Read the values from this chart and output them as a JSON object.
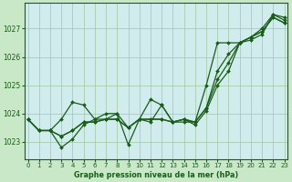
{
  "title": "Graphe pression niveau de la mer (hPa)",
  "bg_color": "#c8e8c8",
  "plot_bg_color": "#d0ecec",
  "grid_color": "#a0c8a0",
  "line_color": "#1a5c1a",
  "marker_color": "#1a5c1a",
  "xlim": [
    -0.3,
    23.3
  ],
  "ylim": [
    1022.4,
    1027.9
  ],
  "yticks": [
    1023,
    1024,
    1025,
    1026,
    1027
  ],
  "xticks": [
    0,
    1,
    2,
    3,
    4,
    5,
    6,
    7,
    8,
    9,
    10,
    11,
    12,
    13,
    14,
    15,
    16,
    17,
    18,
    19,
    20,
    21,
    22,
    23
  ],
  "series": [
    [
      1023.8,
      1023.4,
      1023.4,
      1022.8,
      1023.1,
      1023.6,
      1023.8,
      1023.8,
      1024.0,
      1022.9,
      1023.8,
      1023.7,
      1024.3,
      1023.7,
      1023.8,
      1023.6,
      1024.1,
      1025.0,
      1025.5,
      1026.5,
      1026.6,
      1026.8,
      1027.5,
      1027.3
    ],
    [
      1023.8,
      1023.4,
      1023.4,
      1023.2,
      1023.4,
      1023.7,
      1023.7,
      1023.8,
      1023.8,
      1023.5,
      1023.8,
      1023.8,
      1023.8,
      1023.7,
      1023.8,
      1023.7,
      1024.2,
      1025.5,
      1026.1,
      1026.5,
      1026.7,
      1026.9,
      1027.4,
      1027.2
    ],
    [
      1023.8,
      1023.4,
      1023.4,
      1023.2,
      1023.4,
      1023.7,
      1023.7,
      1023.8,
      1023.8,
      1023.5,
      1023.8,
      1023.8,
      1023.8,
      1023.7,
      1023.8,
      1023.7,
      1025.0,
      1026.5,
      1026.5,
      1026.5,
      1026.7,
      1026.9,
      1027.4,
      1027.2
    ],
    [
      1023.8,
      1023.4,
      1023.4,
      1023.8,
      1024.4,
      1024.3,
      1023.8,
      1024.0,
      1024.0,
      1023.5,
      1023.8,
      1024.5,
      1024.3,
      1023.7,
      1023.7,
      1023.7,
      1024.2,
      1025.2,
      1025.8,
      1026.5,
      1026.7,
      1027.0,
      1027.5,
      1027.4
    ]
  ]
}
